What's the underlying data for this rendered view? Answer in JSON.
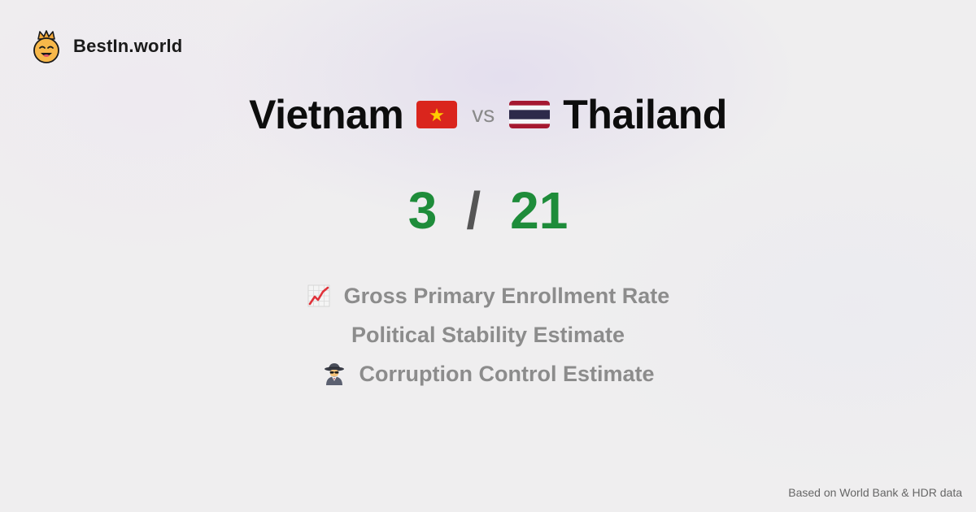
{
  "brand": {
    "name": "BestIn.world",
    "logo_icon": "crown-smiley-icon"
  },
  "comparison": {
    "left_country": "Vietnam",
    "left_flag": "vietnam-flag-icon",
    "vs_label": "vs",
    "right_country": "Thailand",
    "right_flag": "thailand-flag-icon"
  },
  "score": {
    "left": "3",
    "separator": "/",
    "right": "21"
  },
  "metrics": [
    {
      "icon": "chart-increasing-icon",
      "label": "Gross Primary Enrollment Rate"
    },
    {
      "icon": "",
      "label": "Political Stability Estimate"
    },
    {
      "icon": "detective-icon",
      "label": "Corruption Control Estimate"
    }
  ],
  "footer": {
    "source": "Based on World Bank & HDR data"
  },
  "colors": {
    "score_green": "#1e8c3a",
    "vietnam_red": "#da251d",
    "vietnam_star": "#ffcd00",
    "thailand_red": "#a51931",
    "thailand_blue": "#2d2a4a"
  }
}
